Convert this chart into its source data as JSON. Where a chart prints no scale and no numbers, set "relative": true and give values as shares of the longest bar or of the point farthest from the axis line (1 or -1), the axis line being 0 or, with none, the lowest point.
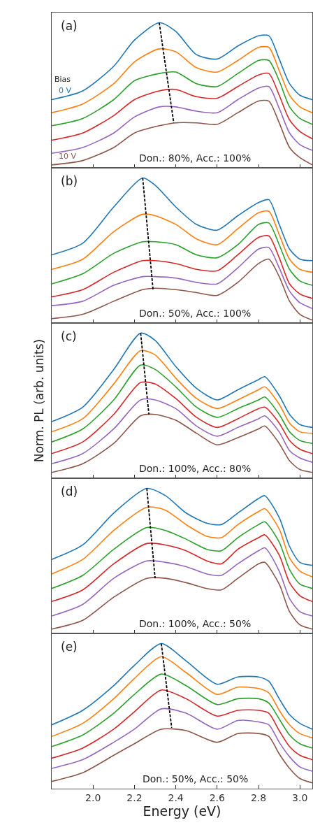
{
  "chart_data": [
    {
      "type": "line",
      "relative": true,
      "xlim": [
        1.8,
        3.06
      ],
      "xticks": [
        {
          "value": 2.0,
          "label": null
        },
        {
          "value": 2.2,
          "label": null
        },
        {
          "value": 2.4,
          "label": null
        },
        {
          "value": 2.6,
          "label": null
        },
        {
          "value": 2.8,
          "label": null
        },
        {
          "value": 3.0,
          "label": null
        }
      ],
      "tick_labels": false,
      "legend_title": "Bias",
      "annotations": [
        "(a)",
        "Don.: 80%, Acc.: 100%"
      ],
      "x": [
        1.8,
        1.95,
        2.1,
        2.2,
        2.32,
        2.4,
        2.5,
        2.6,
        2.7,
        2.8,
        2.85,
        2.9,
        2.95,
        3.0,
        3.06
      ],
      "series": [
        {
          "name": "0 V",
          "color": "#1f77b4",
          "values": [
            0.47,
            0.53,
            0.7,
            0.88,
            1.0,
            0.94,
            0.78,
            0.75,
            0.84,
            0.91,
            0.91,
            0.75,
            0.58,
            0.5,
            0.47
          ]
        },
        {
          "color": "#ff7f0e",
          "values": [
            0.38,
            0.44,
            0.58,
            0.73,
            0.82,
            0.8,
            0.69,
            0.66,
            0.74,
            0.83,
            0.83,
            0.67,
            0.5,
            0.42,
            0.38
          ]
        },
        {
          "color": "#2ca02c",
          "values": [
            0.29,
            0.34,
            0.47,
            0.6,
            0.65,
            0.66,
            0.58,
            0.56,
            0.65,
            0.74,
            0.74,
            0.6,
            0.42,
            0.34,
            0.3
          ]
        },
        {
          "color": "#d62728",
          "values": [
            0.19,
            0.24,
            0.36,
            0.47,
            0.53,
            0.54,
            0.49,
            0.48,
            0.56,
            0.64,
            0.65,
            0.5,
            0.33,
            0.25,
            0.2
          ]
        },
        {
          "color": "#9467bd",
          "values": [
            0.1,
            0.14,
            0.24,
            0.35,
            0.42,
            0.42,
            0.39,
            0.38,
            0.47,
            0.55,
            0.56,
            0.41,
            0.24,
            0.16,
            0.12
          ]
        },
        {
          "name": "10 V",
          "color": "#8c564b",
          "values": [
            0.02,
            0.05,
            0.14,
            0.24,
            0.29,
            0.31,
            0.31,
            0.3,
            0.38,
            0.46,
            0.46,
            0.31,
            0.14,
            0.07,
            0.02
          ]
        },
        {
          "type": "line",
          "color": "#000000",
          "line_style": "dashed",
          "x": [
            2.32,
            2.39
          ],
          "values": [
            1.0,
            0.31
          ]
        }
      ]
    },
    {
      "type": "line",
      "relative": true,
      "xlim": [
        1.8,
        3.06
      ],
      "xticks": [
        {
          "value": 2.0,
          "label": null
        },
        {
          "value": 2.2,
          "label": null
        },
        {
          "value": 2.4,
          "label": null
        },
        {
          "value": 2.6,
          "label": null
        },
        {
          "value": 2.8,
          "label": null
        },
        {
          "value": 3.0,
          "label": null
        }
      ],
      "tick_labels": false,
      "annotations": [
        "(b)",
        "Don.: 50%, Acc.: 100%"
      ],
      "x": [
        1.8,
        1.95,
        2.1,
        2.24,
        2.3,
        2.4,
        2.5,
        2.6,
        2.7,
        2.8,
        2.85,
        2.9,
        2.95,
        3.0,
        3.06
      ],
      "series": [
        {
          "color": "#1f77b4",
          "values": [
            0.47,
            0.55,
            0.8,
            1.0,
            0.95,
            0.8,
            0.68,
            0.64,
            0.74,
            0.83,
            0.85,
            0.68,
            0.51,
            0.44,
            0.43
          ]
        },
        {
          "color": "#ff7f0e",
          "values": [
            0.37,
            0.44,
            0.63,
            0.75,
            0.74,
            0.68,
            0.58,
            0.54,
            0.65,
            0.76,
            0.77,
            0.61,
            0.44,
            0.37,
            0.35
          ]
        },
        {
          "color": "#2ca02c",
          "values": [
            0.27,
            0.34,
            0.48,
            0.56,
            0.56,
            0.54,
            0.47,
            0.45,
            0.54,
            0.68,
            0.69,
            0.54,
            0.37,
            0.29,
            0.26
          ]
        },
        {
          "color": "#d62728",
          "values": [
            0.18,
            0.23,
            0.35,
            0.43,
            0.43,
            0.41,
            0.37,
            0.36,
            0.47,
            0.59,
            0.6,
            0.45,
            0.27,
            0.2,
            0.17
          ]
        },
        {
          "color": "#9467bd",
          "values": [
            0.12,
            0.15,
            0.26,
            0.32,
            0.32,
            0.31,
            0.28,
            0.27,
            0.38,
            0.51,
            0.52,
            0.38,
            0.22,
            0.14,
            0.1
          ]
        },
        {
          "color": "#8c564b",
          "values": [
            0.03,
            0.06,
            0.15,
            0.23,
            0.24,
            0.23,
            0.21,
            0.19,
            0.28,
            0.41,
            0.44,
            0.32,
            0.15,
            0.06,
            0.02
          ]
        },
        {
          "type": "line",
          "color": "#000000",
          "line_style": "dashed",
          "x": [
            2.24,
            2.29
          ],
          "values": [
            1.0,
            0.23
          ]
        }
      ]
    },
    {
      "type": "line",
      "relative": true,
      "xlim": [
        1.8,
        3.06
      ],
      "xticks": [
        {
          "value": 2.0,
          "label": null
        },
        {
          "value": 2.2,
          "label": null
        },
        {
          "value": 2.4,
          "label": null
        },
        {
          "value": 2.6,
          "label": null
        },
        {
          "value": 2.8,
          "label": null
        },
        {
          "value": 3.0,
          "label": null
        }
      ],
      "tick_labels": false,
      "ylabel": "Norm. PL (arb. units)",
      "annotations": [
        "(c)",
        "Don.: 100%, Acc.: 80%"
      ],
      "x": [
        1.8,
        1.95,
        2.1,
        2.23,
        2.3,
        2.4,
        2.5,
        2.6,
        2.7,
        2.8,
        2.83,
        2.9,
        2.95,
        3.0,
        3.06
      ],
      "series": [
        {
          "color": "#1f77b4",
          "values": [
            0.39,
            0.49,
            0.75,
            1.0,
            0.95,
            0.77,
            0.62,
            0.54,
            0.61,
            0.68,
            0.7,
            0.57,
            0.44,
            0.37,
            0.35
          ]
        },
        {
          "color": "#ff7f0e",
          "values": [
            0.32,
            0.41,
            0.65,
            0.88,
            0.85,
            0.69,
            0.55,
            0.48,
            0.54,
            0.61,
            0.63,
            0.51,
            0.38,
            0.32,
            0.31
          ]
        },
        {
          "color": "#2ca02c",
          "values": [
            0.25,
            0.34,
            0.54,
            0.78,
            0.75,
            0.63,
            0.49,
            0.42,
            0.48,
            0.54,
            0.56,
            0.44,
            0.32,
            0.26,
            0.24
          ]
        },
        {
          "color": "#d62728",
          "values": [
            0.17,
            0.25,
            0.44,
            0.66,
            0.65,
            0.55,
            0.42,
            0.35,
            0.41,
            0.48,
            0.49,
            0.38,
            0.26,
            0.2,
            0.17
          ]
        },
        {
          "color": "#9467bd",
          "values": [
            0.1,
            0.17,
            0.34,
            0.54,
            0.54,
            0.48,
            0.36,
            0.29,
            0.35,
            0.41,
            0.43,
            0.32,
            0.19,
            0.14,
            0.11
          ]
        },
        {
          "color": "#8c564b",
          "values": [
            0.04,
            0.1,
            0.24,
            0.43,
            0.44,
            0.4,
            0.31,
            0.23,
            0.28,
            0.34,
            0.36,
            0.24,
            0.12,
            0.06,
            0.04
          ]
        },
        {
          "type": "line",
          "color": "#000000",
          "line_style": "dashed",
          "x": [
            2.23,
            2.27
          ],
          "values": [
            1.0,
            0.44
          ]
        }
      ]
    },
    {
      "type": "line",
      "relative": true,
      "xlim": [
        1.8,
        3.06
      ],
      "xticks": [
        {
          "value": 2.0,
          "label": null
        },
        {
          "value": 2.2,
          "label": null
        },
        {
          "value": 2.4,
          "label": null
        },
        {
          "value": 2.6,
          "label": null
        },
        {
          "value": 2.8,
          "label": null
        },
        {
          "value": 3.0,
          "label": null
        }
      ],
      "tick_labels": false,
      "annotations": [
        "(d)",
        "Don.: 100%, Acc.: 50%"
      ],
      "x": [
        1.8,
        1.95,
        2.1,
        2.26,
        2.35,
        2.45,
        2.55,
        2.62,
        2.7,
        2.8,
        2.83,
        2.9,
        2.95,
        3.0,
        3.06
      ],
      "series": [
        {
          "color": "#1f77b4",
          "values": [
            0.51,
            0.61,
            0.83,
            1.0,
            0.95,
            0.83,
            0.76,
            0.75,
            0.83,
            0.93,
            0.95,
            0.8,
            0.6,
            0.49,
            0.47
          ]
        },
        {
          "color": "#ff7f0e",
          "values": [
            0.41,
            0.51,
            0.71,
            0.87,
            0.85,
            0.75,
            0.67,
            0.66,
            0.75,
            0.84,
            0.86,
            0.72,
            0.52,
            0.43,
            0.39
          ]
        },
        {
          "color": "#2ca02c",
          "values": [
            0.31,
            0.4,
            0.58,
            0.73,
            0.71,
            0.65,
            0.58,
            0.57,
            0.66,
            0.75,
            0.77,
            0.63,
            0.44,
            0.34,
            0.31
          ]
        },
        {
          "color": "#d62728",
          "values": [
            0.22,
            0.3,
            0.48,
            0.62,
            0.61,
            0.57,
            0.5,
            0.48,
            0.58,
            0.66,
            0.68,
            0.54,
            0.35,
            0.26,
            0.22
          ]
        },
        {
          "color": "#9467bd",
          "values": [
            0.12,
            0.2,
            0.38,
            0.5,
            0.49,
            0.46,
            0.41,
            0.4,
            0.48,
            0.57,
            0.59,
            0.43,
            0.24,
            0.15,
            0.12
          ]
        },
        {
          "color": "#8c564b",
          "values": [
            0.03,
            0.09,
            0.25,
            0.38,
            0.38,
            0.35,
            0.31,
            0.3,
            0.38,
            0.48,
            0.49,
            0.34,
            0.15,
            0.06,
            0.03
          ]
        },
        {
          "type": "line",
          "color": "#000000",
          "line_style": "dashed",
          "x": [
            2.26,
            2.3
          ],
          "values": [
            1.0,
            0.38
          ]
        }
      ]
    },
    {
      "type": "line",
      "relative": true,
      "xlim": [
        1.8,
        3.06
      ],
      "xticks": [
        {
          "value": 2.0,
          "label": "2.0"
        },
        {
          "value": 2.2,
          "label": "2.2"
        },
        {
          "value": 2.4,
          "label": "2.4"
        },
        {
          "value": 2.6,
          "label": "2.6"
        },
        {
          "value": 2.8,
          "label": "2.8"
        },
        {
          "value": 3.0,
          "label": "3.0"
        }
      ],
      "tick_labels": "x",
      "xlabel": "Energy (eV)",
      "annotations": [
        "(e)",
        "Don.: 50%, Acc.: 50%"
      ],
      "x": [
        1.8,
        1.95,
        2.1,
        2.2,
        2.33,
        2.45,
        2.6,
        2.7,
        2.8,
        2.85,
        2.9,
        2.95,
        3.0,
        3.06
      ],
      "series": [
        {
          "color": "#1f77b4",
          "values": [
            0.44,
            0.54,
            0.71,
            0.85,
            1.0,
            0.88,
            0.72,
            0.77,
            0.77,
            0.74,
            0.62,
            0.51,
            0.45,
            0.41
          ]
        },
        {
          "color": "#ff7f0e",
          "values": [
            0.36,
            0.45,
            0.62,
            0.76,
            0.91,
            0.8,
            0.65,
            0.7,
            0.69,
            0.66,
            0.54,
            0.44,
            0.38,
            0.35
          ]
        },
        {
          "color": "#2ca02c",
          "values": [
            0.29,
            0.37,
            0.52,
            0.65,
            0.79,
            0.71,
            0.58,
            0.62,
            0.62,
            0.59,
            0.48,
            0.37,
            0.31,
            0.28
          ]
        },
        {
          "color": "#d62728",
          "values": [
            0.21,
            0.28,
            0.41,
            0.53,
            0.68,
            0.62,
            0.5,
            0.54,
            0.54,
            0.52,
            0.4,
            0.29,
            0.23,
            0.2
          ]
        },
        {
          "color": "#9467bd",
          "values": [
            0.14,
            0.2,
            0.32,
            0.41,
            0.55,
            0.52,
            0.41,
            0.47,
            0.46,
            0.44,
            0.32,
            0.22,
            0.15,
            0.12
          ]
        },
        {
          "color": "#8c564b",
          "values": [
            0.05,
            0.11,
            0.23,
            0.31,
            0.41,
            0.4,
            0.32,
            0.38,
            0.38,
            0.36,
            0.24,
            0.14,
            0.07,
            0.04
          ]
        },
        {
          "type": "line",
          "color": "#000000",
          "line_style": "dashed",
          "x": [
            2.33,
            2.38
          ],
          "values": [
            1.0,
            0.42
          ]
        }
      ]
    }
  ]
}
